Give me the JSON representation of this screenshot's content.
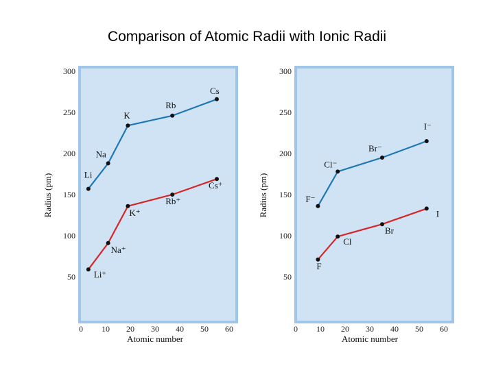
{
  "title": "Comparison of Atomic Radii with Ionic Radii",
  "colors": {
    "panel_bg": "#cfe3f4",
    "panel_border": "#9fc6e8",
    "atomic": "#1f77b4",
    "ionic": "#d62728",
    "point": "#111111"
  },
  "chart_data": [
    {
      "type": "line",
      "xlabel": "Atomic number",
      "ylabel": "Radius (pm)",
      "xlim": [
        0,
        60
      ],
      "ylim": [
        0,
        300
      ],
      "xticks": [
        0,
        10,
        20,
        30,
        40,
        50,
        60
      ],
      "yticks": [
        50,
        100,
        150,
        200,
        250,
        300
      ],
      "series": [
        {
          "color": "#1f77b4",
          "x": [
            3,
            11,
            19,
            37,
            55
          ],
          "y": [
            157,
            188,
            234,
            246,
            266
          ],
          "labels": [
            "Li",
            "Na",
            "K",
            "Rb",
            "Cs"
          ]
        },
        {
          "color": "#d62728",
          "x": [
            3,
            11,
            19,
            37,
            55
          ],
          "y": [
            59,
            91,
            136,
            150,
            169
          ],
          "labels": [
            "Li⁺",
            "Na⁺",
            "K⁺",
            "Rb⁺",
            "Cs⁺"
          ]
        }
      ]
    },
    {
      "type": "line",
      "xlabel": "Atomic number",
      "ylabel": "Radius (pm)",
      "xlim": [
        0,
        60
      ],
      "ylim": [
        0,
        300
      ],
      "xticks": [
        0,
        10,
        20,
        30,
        40,
        50,
        60
      ],
      "yticks": [
        50,
        100,
        150,
        200,
        250,
        300
      ],
      "series": [
        {
          "color": "#1f77b4",
          "x": [
            9,
            17,
            35,
            53
          ],
          "y": [
            136,
            178,
            195,
            215
          ],
          "labels": [
            "F⁻",
            "Cl⁻",
            "Br⁻",
            "I⁻"
          ]
        },
        {
          "color": "#d62728",
          "x": [
            9,
            17,
            35,
            53
          ],
          "y": [
            71,
            99,
            114,
            133
          ],
          "labels": [
            "F",
            "Cl",
            "Br",
            "I"
          ]
        }
      ]
    }
  ]
}
